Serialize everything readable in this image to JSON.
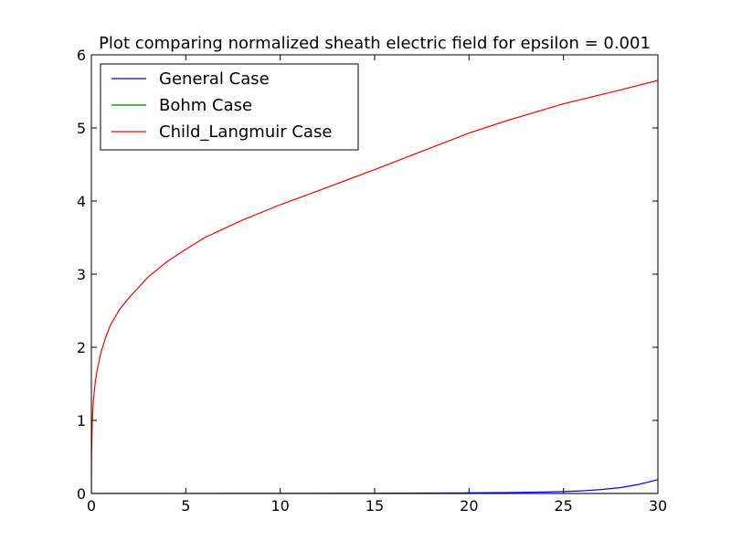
{
  "chart_data": {
    "type": "line",
    "title": "Plot comparing normalized sheath electric field for epsilon = 0.001",
    "xlabel": "",
    "ylabel": "",
    "xlim": [
      0,
      30
    ],
    "ylim": [
      0,
      6
    ],
    "x_ticks": [
      0,
      5,
      10,
      15,
      20,
      25,
      30
    ],
    "y_ticks": [
      0,
      1,
      2,
      3,
      4,
      5,
      6
    ],
    "grid": false,
    "legend_position": "top-left",
    "series": [
      {
        "name": "General Case",
        "color": "#0000ff",
        "x": [
          0,
          5,
          10,
          15,
          18,
          20,
          22,
          24,
          25,
          26,
          27,
          28,
          29,
          30
        ],
        "y": [
          0,
          0.001,
          0.002,
          0.004,
          0.006,
          0.009,
          0.013,
          0.02,
          0.027,
          0.037,
          0.055,
          0.08,
          0.125,
          0.19
        ]
      },
      {
        "name": "Bohm Case",
        "color": "#008000",
        "x": [
          0,
          30
        ],
        "y": [
          0,
          0
        ]
      },
      {
        "name": "Child_Langmuir Case",
        "color": "#ff0000",
        "x": [
          0,
          0.01,
          0.05,
          0.1,
          0.2,
          0.3,
          0.5,
          0.75,
          1,
          1.5,
          2,
          3,
          4,
          5,
          6,
          8,
          10,
          12,
          15,
          18,
          20,
          22,
          25,
          28,
          30
        ],
        "y": [
          0,
          0.58,
          1.0,
          1.25,
          1.51,
          1.68,
          1.92,
          2.13,
          2.3,
          2.52,
          2.68,
          2.96,
          3.17,
          3.34,
          3.5,
          3.74,
          3.95,
          4.14,
          4.43,
          4.73,
          4.93,
          5.1,
          5.33,
          5.52,
          5.65
        ]
      }
    ]
  }
}
